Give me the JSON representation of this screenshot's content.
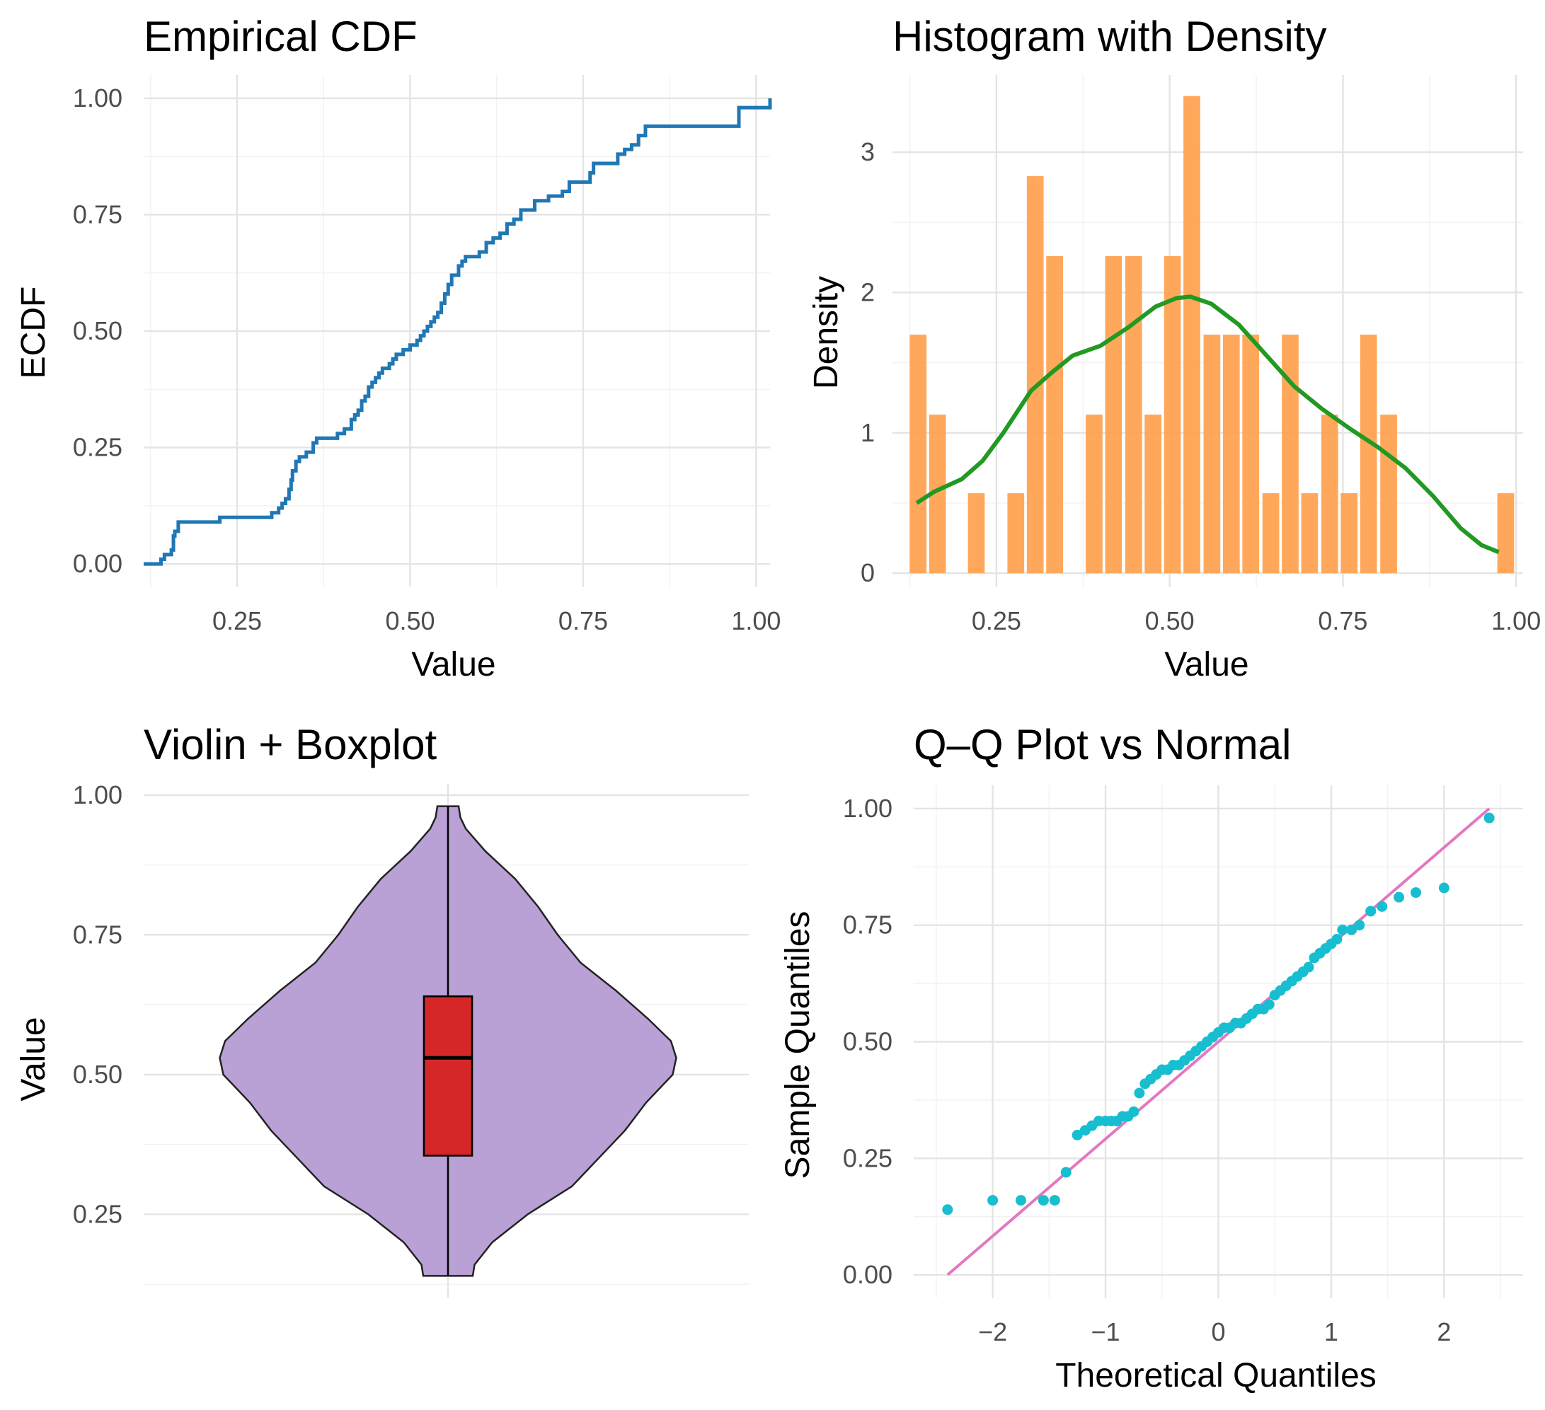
{
  "colors": {
    "ecdf_line": "#1f77b4",
    "hist_bar": "#ff9e4a",
    "density_line": "#229922",
    "violin_fill": "#b9a0d5",
    "box_fill": "#d62728",
    "qq_point": "#17becf",
    "qq_line": "#e377c2"
  },
  "chart_data": [
    {
      "id": "ecdf",
      "type": "line",
      "title": "Empirical CDF",
      "xlabel": "Value",
      "ylabel": "ECDF",
      "xlim": [
        0.115,
        1.02
      ],
      "ylim": [
        -0.05,
        1.05
      ],
      "xticks": [
        0.25,
        0.5,
        0.75,
        1.0
      ],
      "xtick_labels": [
        "0.25",
        "0.50",
        "0.75",
        "1.00"
      ],
      "yticks": [
        0.0,
        0.25,
        0.5,
        0.75,
        1.0
      ],
      "ytick_labels": [
        "0.00",
        "0.25",
        "0.50",
        "0.75",
        "1.00"
      ],
      "step_x": [
        0.115,
        0.14,
        0.145,
        0.155,
        0.158,
        0.16,
        0.165,
        0.22,
        0.225,
        0.3,
        0.31,
        0.315,
        0.32,
        0.325,
        0.328,
        0.33,
        0.335,
        0.34,
        0.35,
        0.36,
        0.365,
        0.395,
        0.405,
        0.415,
        0.42,
        0.425,
        0.43,
        0.435,
        0.44,
        0.445,
        0.45,
        0.455,
        0.46,
        0.47,
        0.475,
        0.48,
        0.49,
        0.5,
        0.51,
        0.515,
        0.52,
        0.525,
        0.53,
        0.535,
        0.54,
        0.545,
        0.55,
        0.555,
        0.56,
        0.57,
        0.575,
        0.58,
        0.6,
        0.61,
        0.62,
        0.63,
        0.64,
        0.65,
        0.66,
        0.68,
        0.7,
        0.72,
        0.73,
        0.76,
        0.765,
        0.8,
        0.81,
        0.82,
        0.83,
        0.84,
        0.975,
        1.02
      ],
      "step_y": [
        0.0,
        0.01,
        0.02,
        0.03,
        0.06,
        0.07,
        0.09,
        0.09,
        0.1,
        0.11,
        0.12,
        0.13,
        0.14,
        0.16,
        0.18,
        0.2,
        0.22,
        0.23,
        0.24,
        0.26,
        0.27,
        0.28,
        0.29,
        0.31,
        0.32,
        0.33,
        0.35,
        0.36,
        0.38,
        0.39,
        0.4,
        0.41,
        0.42,
        0.43,
        0.44,
        0.45,
        0.46,
        0.47,
        0.48,
        0.49,
        0.5,
        0.51,
        0.52,
        0.53,
        0.54,
        0.56,
        0.58,
        0.6,
        0.62,
        0.64,
        0.65,
        0.66,
        0.67,
        0.69,
        0.7,
        0.71,
        0.73,
        0.74,
        0.76,
        0.78,
        0.79,
        0.8,
        0.82,
        0.84,
        0.86,
        0.88,
        0.89,
        0.9,
        0.92,
        0.94,
        0.98,
        1.0
      ]
    },
    {
      "id": "hist",
      "type": "bar",
      "title": "Histogram with Density",
      "xlabel": "Value",
      "ylabel": "Density",
      "xlim": [
        0.1,
        1.01
      ],
      "ylim": [
        -0.1,
        3.55
      ],
      "xticks": [
        0.25,
        0.5,
        0.75,
        1.0
      ],
      "xtick_labels": [
        "0.25",
        "0.50",
        "0.75",
        "1.00"
      ],
      "yticks": [
        0,
        1,
        2,
        3
      ],
      "ytick_labels": [
        "0",
        "1",
        "2",
        "3"
      ],
      "bin_width": 0.0283,
      "bin_centers": [
        0.137,
        0.165,
        0.193,
        0.221,
        0.249,
        0.278,
        0.306,
        0.334,
        0.363,
        0.391,
        0.419,
        0.448,
        0.476,
        0.504,
        0.532,
        0.561,
        0.589,
        0.617,
        0.646,
        0.674,
        0.702,
        0.731,
        0.759,
        0.787,
        0.816,
        0.844,
        0.872,
        0.9,
        0.929,
        0.957,
        0.985
      ],
      "values": [
        1.7,
        1.13,
        0,
        0.57,
        0,
        0.57,
        2.83,
        2.26,
        0,
        1.13,
        2.26,
        2.26,
        1.13,
        2.26,
        3.4,
        1.7,
        1.7,
        1.7,
        0.57,
        1.7,
        0.57,
        1.13,
        0.57,
        1.7,
        1.13,
        0,
        0,
        0,
        0,
        0,
        0.57
      ],
      "density_x": [
        0.135,
        0.16,
        0.2,
        0.23,
        0.26,
        0.3,
        0.33,
        0.36,
        0.4,
        0.44,
        0.48,
        0.51,
        0.53,
        0.56,
        0.6,
        0.64,
        0.68,
        0.72,
        0.76,
        0.8,
        0.84,
        0.88,
        0.92,
        0.95,
        0.975
      ],
      "density_y": [
        0.5,
        0.58,
        0.67,
        0.8,
        1.0,
        1.3,
        1.43,
        1.55,
        1.62,
        1.75,
        1.9,
        1.96,
        1.97,
        1.92,
        1.77,
        1.55,
        1.33,
        1.17,
        1.03,
        0.9,
        0.75,
        0.55,
        0.32,
        0.2,
        0.15
      ]
    },
    {
      "id": "violin",
      "type": "violin",
      "title": "Violin + Boxplot",
      "xlabel": "",
      "ylabel": "Value",
      "ylim": [
        0.1,
        1.02
      ],
      "yticks": [
        0.25,
        0.5,
        0.75,
        1.0
      ],
      "ytick_labels": [
        "0.25",
        "0.50",
        "0.75",
        "1.00"
      ],
      "extra_gridlines": [
        0.125,
        0.375,
        0.625,
        0.875
      ],
      "violin_y": [
        0.14,
        0.16,
        0.2,
        0.25,
        0.3,
        0.35,
        0.4,
        0.45,
        0.5,
        0.53,
        0.56,
        0.6,
        0.65,
        0.7,
        0.75,
        0.8,
        0.85,
        0.9,
        0.94,
        0.96,
        0.98
      ],
      "violin_halfwidth": [
        0.14,
        0.15,
        0.25,
        0.45,
        0.7,
        0.85,
        1.0,
        1.12,
        1.27,
        1.29,
        1.26,
        1.13,
        0.95,
        0.75,
        0.62,
        0.51,
        0.38,
        0.21,
        0.1,
        0.07,
        0.06
      ],
      "box": {
        "q1": 0.355,
        "median": 0.53,
        "q3": 0.64,
        "min": 0.14,
        "max": 0.98
      }
    },
    {
      "id": "qq",
      "type": "scatter",
      "title": "Q–Q Plot vs Normal",
      "xlabel": "Theoretical Quantiles",
      "ylabel": "Sample Quantiles",
      "xlim": [
        -2.7,
        2.7
      ],
      "ylim": [
        -0.05,
        1.05
      ],
      "xticks": [
        -2,
        -1,
        0,
        1,
        2
      ],
      "xtick_labels": [
        "−2",
        "−1",
        "0",
        "1",
        "2"
      ],
      "yticks": [
        0.0,
        0.25,
        0.5,
        0.75,
        1.0
      ],
      "ytick_labels": [
        "0.00",
        "0.25",
        "0.50",
        "0.75",
        "1.00"
      ],
      "x": [
        -2.4,
        -2.0,
        -1.75,
        -1.55,
        -1.45,
        -1.35,
        -1.25,
        -1.18,
        -1.12,
        -1.06,
        -1.0,
        -0.95,
        -0.9,
        -0.85,
        -0.8,
        -0.75,
        -0.7,
        -0.65,
        -0.6,
        -0.55,
        -0.5,
        -0.45,
        -0.4,
        -0.35,
        -0.3,
        -0.25,
        -0.2,
        -0.15,
        -0.1,
        -0.05,
        0.0,
        0.05,
        0.1,
        0.15,
        0.2,
        0.25,
        0.3,
        0.35,
        0.4,
        0.45,
        0.5,
        0.55,
        0.6,
        0.65,
        0.7,
        0.75,
        0.8,
        0.85,
        0.9,
        0.95,
        1.0,
        1.05,
        1.1,
        1.18,
        1.25,
        1.35,
        1.45,
        1.6,
        1.75,
        2.0,
        2.4
      ],
      "y": [
        0.14,
        0.16,
        0.16,
        0.16,
        0.16,
        0.22,
        0.3,
        0.31,
        0.32,
        0.33,
        0.33,
        0.33,
        0.33,
        0.34,
        0.34,
        0.35,
        0.39,
        0.41,
        0.42,
        0.43,
        0.44,
        0.44,
        0.45,
        0.45,
        0.46,
        0.47,
        0.48,
        0.49,
        0.5,
        0.51,
        0.52,
        0.53,
        0.53,
        0.54,
        0.54,
        0.55,
        0.56,
        0.57,
        0.57,
        0.58,
        0.6,
        0.61,
        0.62,
        0.63,
        0.64,
        0.65,
        0.66,
        0.68,
        0.69,
        0.7,
        0.71,
        0.72,
        0.74,
        0.74,
        0.75,
        0.78,
        0.79,
        0.81,
        0.82,
        0.83,
        0.98
      ],
      "ref_line": {
        "x": [
          -2.4,
          2.4
        ],
        "y": [
          0.0,
          1.0
        ]
      }
    }
  ]
}
